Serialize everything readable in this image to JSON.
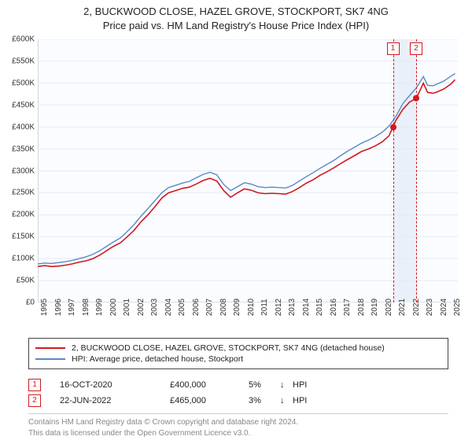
{
  "title_line1": "2, BUCKWOOD CLOSE, HAZEL GROVE, STOCKPORT, SK7 4NG",
  "title_line2": "Price paid vs. HM Land Registry's House Price Index (HPI)",
  "chart": {
    "type": "line",
    "x_range": [
      1995,
      2025.5
    ],
    "y_range": [
      0,
      600
    ],
    "y_ticks": [
      0,
      50,
      100,
      150,
      200,
      250,
      300,
      350,
      400,
      450,
      500,
      550,
      600
    ],
    "y_tick_labels": [
      "£0",
      "£50K",
      "£100K",
      "£150K",
      "£200K",
      "£250K",
      "£300K",
      "£350K",
      "£400K",
      "£450K",
      "£500K",
      "£550K",
      "£600K"
    ],
    "x_ticks": [
      1995,
      1996,
      1997,
      1998,
      1999,
      2000,
      2001,
      2002,
      2003,
      2004,
      2005,
      2006,
      2007,
      2008,
      2009,
      2010,
      2011,
      2012,
      2013,
      2014,
      2015,
      2016,
      2017,
      2018,
      2019,
      2020,
      2021,
      2022,
      2023,
      2024,
      2025
    ],
    "highlight_from": 2020.79,
    "highlight_to": 2022.47,
    "background_color": "#fafcff",
    "series": [
      {
        "name": "property",
        "color": "#d2191e",
        "width": 1.6,
        "points": [
          [
            1995,
            82
          ],
          [
            1995.5,
            84
          ],
          [
            1996,
            82
          ],
          [
            1996.5,
            83
          ],
          [
            1997,
            85
          ],
          [
            1997.5,
            88
          ],
          [
            1998,
            92
          ],
          [
            1998.5,
            95
          ],
          [
            1999,
            100
          ],
          [
            1999.5,
            108
          ],
          [
            2000,
            118
          ],
          [
            2000.5,
            128
          ],
          [
            2001,
            136
          ],
          [
            2001.5,
            150
          ],
          [
            2002,
            165
          ],
          [
            2002.5,
            184
          ],
          [
            2003,
            200
          ],
          [
            2003.5,
            218
          ],
          [
            2004,
            238
          ],
          [
            2004.5,
            250
          ],
          [
            2005,
            255
          ],
          [
            2005.5,
            260
          ],
          [
            2006,
            263
          ],
          [
            2006.5,
            270
          ],
          [
            2007,
            278
          ],
          [
            2007.5,
            283
          ],
          [
            2008,
            277
          ],
          [
            2008.5,
            255
          ],
          [
            2009,
            240
          ],
          [
            2009.5,
            250
          ],
          [
            2010,
            259
          ],
          [
            2010.5,
            256
          ],
          [
            2011,
            250
          ],
          [
            2011.5,
            248
          ],
          [
            2012,
            249
          ],
          [
            2012.5,
            248
          ],
          [
            2013,
            247
          ],
          [
            2013.5,
            253
          ],
          [
            2014,
            262
          ],
          [
            2014.5,
            272
          ],
          [
            2015,
            280
          ],
          [
            2015.5,
            290
          ],
          [
            2016,
            298
          ],
          [
            2016.5,
            307
          ],
          [
            2017,
            317
          ],
          [
            2017.5,
            326
          ],
          [
            2018,
            335
          ],
          [
            2018.5,
            344
          ],
          [
            2019,
            350
          ],
          [
            2019.5,
            357
          ],
          [
            2020,
            366
          ],
          [
            2020.5,
            380
          ],
          [
            2020.79,
            400
          ],
          [
            2021,
            415
          ],
          [
            2021.5,
            440
          ],
          [
            2022,
            457
          ],
          [
            2022.47,
            465
          ],
          [
            2022.7,
            480
          ],
          [
            2023,
            500
          ],
          [
            2023.3,
            479
          ],
          [
            2023.7,
            477
          ],
          [
            2024,
            480
          ],
          [
            2024.5,
            487
          ],
          [
            2025,
            498
          ],
          [
            2025.3,
            508
          ]
        ]
      },
      {
        "name": "hpi",
        "color": "#5b89c4",
        "width": 1.4,
        "points": [
          [
            1995,
            88
          ],
          [
            1995.5,
            90
          ],
          [
            1996,
            89
          ],
          [
            1996.5,
            91
          ],
          [
            1997,
            93
          ],
          [
            1997.5,
            96
          ],
          [
            1998,
            100
          ],
          [
            1998.5,
            104
          ],
          [
            1999,
            110
          ],
          [
            1999.5,
            118
          ],
          [
            2000,
            128
          ],
          [
            2000.5,
            138
          ],
          [
            2001,
            147
          ],
          [
            2001.5,
            162
          ],
          [
            2002,
            178
          ],
          [
            2002.5,
            197
          ],
          [
            2003,
            214
          ],
          [
            2003.5,
            232
          ],
          [
            2004,
            250
          ],
          [
            2004.5,
            262
          ],
          [
            2005,
            267
          ],
          [
            2005.5,
            272
          ],
          [
            2006,
            276
          ],
          [
            2006.5,
            284
          ],
          [
            2007,
            292
          ],
          [
            2007.5,
            297
          ],
          [
            2008,
            291
          ],
          [
            2008.5,
            269
          ],
          [
            2009,
            255
          ],
          [
            2009.5,
            264
          ],
          [
            2010,
            273
          ],
          [
            2010.5,
            270
          ],
          [
            2011,
            264
          ],
          [
            2011.5,
            262
          ],
          [
            2012,
            263
          ],
          [
            2012.5,
            262
          ],
          [
            2013,
            261
          ],
          [
            2013.5,
            267
          ],
          [
            2014,
            277
          ],
          [
            2014.5,
            287
          ],
          [
            2015,
            296
          ],
          [
            2015.5,
            306
          ],
          [
            2016,
            315
          ],
          [
            2016.5,
            324
          ],
          [
            2017,
            335
          ],
          [
            2017.5,
            345
          ],
          [
            2018,
            354
          ],
          [
            2018.5,
            363
          ],
          [
            2019,
            370
          ],
          [
            2019.5,
            378
          ],
          [
            2020,
            388
          ],
          [
            2020.5,
            402
          ],
          [
            2021,
            424
          ],
          [
            2021.5,
            453
          ],
          [
            2022,
            472
          ],
          [
            2022.5,
            490
          ],
          [
            2023,
            515
          ],
          [
            2023.3,
            495
          ],
          [
            2023.7,
            494
          ],
          [
            2024,
            498
          ],
          [
            2024.5,
            505
          ],
          [
            2025,
            516
          ],
          [
            2025.3,
            522
          ]
        ]
      }
    ],
    "markers": [
      {
        "label": "1",
        "x": 2020.79,
        "y": 400
      },
      {
        "label": "2",
        "x": 2022.47,
        "y": 465
      }
    ]
  },
  "legend": {
    "items": [
      {
        "color": "#d2191e",
        "label": "2, BUCKWOOD CLOSE, HAZEL GROVE, STOCKPORT, SK7 4NG (detached house)"
      },
      {
        "color": "#5b89c4",
        "label": "HPI: Average price, detached house, Stockport"
      }
    ]
  },
  "transactions": [
    {
      "badge": "1",
      "date": "16-OCT-2020",
      "price": "£400,000",
      "delta": "5%",
      "arrow": "↓",
      "ref": "HPI"
    },
    {
      "badge": "2",
      "date": "22-JUN-2022",
      "price": "£465,000",
      "delta": "3%",
      "arrow": "↓",
      "ref": "HPI"
    }
  ],
  "license_line1": "Contains HM Land Registry data © Crown copyright and database right 2024.",
  "license_line2": "This data is licensed under the Open Government Licence v3.0."
}
